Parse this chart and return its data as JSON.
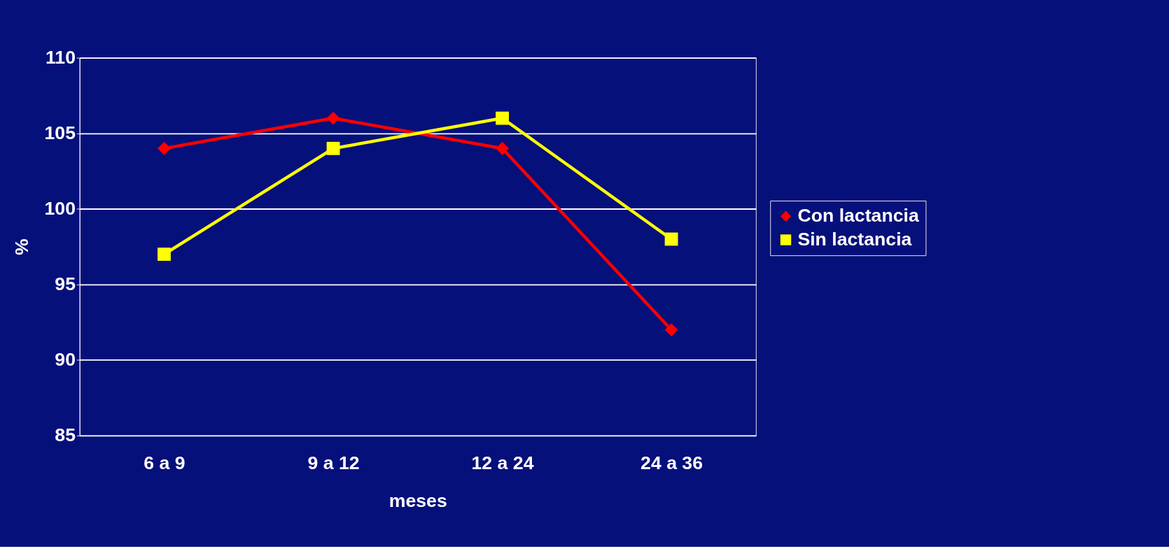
{
  "chart_data": {
    "type": "line",
    "xlabel": "meses",
    "ylabel": "%",
    "categories": [
      "6 a 9",
      "9 a 12",
      "12 a 24",
      "24 a 36"
    ],
    "series": [
      {
        "name": "Con lactancia",
        "color": "#ff0000",
        "marker": "diamond",
        "values": [
          104,
          106,
          104,
          92
        ]
      },
      {
        "name": "Sin lactancia",
        "color": "#ffff00",
        "marker": "square",
        "values": [
          97,
          104,
          106,
          98
        ]
      }
    ],
    "ylim": [
      85,
      110
    ],
    "yticks": [
      85,
      90,
      95,
      100,
      105,
      110
    ],
    "grid": "y",
    "legend": "right"
  }
}
